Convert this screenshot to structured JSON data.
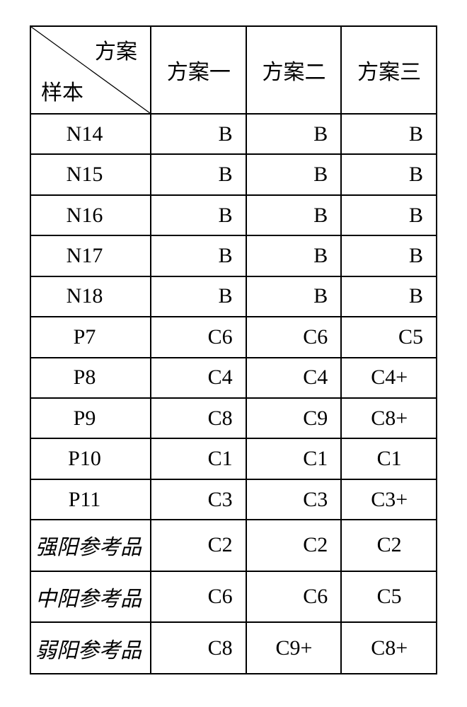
{
  "header": {
    "diag_top": "方案",
    "diag_bottom": "样本",
    "cols": [
      "方案一",
      "方案二",
      "方案三"
    ]
  },
  "rows": [
    {
      "label": "N14",
      "label_style": "id",
      "cells": [
        "B",
        "B",
        "B"
      ],
      "align": [
        "r",
        "r",
        "r"
      ]
    },
    {
      "label": "N15",
      "label_style": "id",
      "cells": [
        "B",
        "B",
        "B"
      ],
      "align": [
        "r",
        "r",
        "r"
      ]
    },
    {
      "label": "N16",
      "label_style": "id",
      "cells": [
        "B",
        "B",
        "B"
      ],
      "align": [
        "r",
        "r",
        "r"
      ]
    },
    {
      "label": "N17",
      "label_style": "id",
      "cells": [
        "B",
        "B",
        "B"
      ],
      "align": [
        "r",
        "r",
        "r"
      ]
    },
    {
      "label": "N18",
      "label_style": "id",
      "cells": [
        "B",
        "B",
        "B"
      ],
      "align": [
        "r",
        "r",
        "r"
      ]
    },
    {
      "label": "P7",
      "label_style": "id",
      "cells": [
        "C6",
        "C6",
        "C5"
      ],
      "align": [
        "r",
        "r",
        "r"
      ]
    },
    {
      "label": "P8",
      "label_style": "id",
      "cells": [
        "C4",
        "C4",
        "C4+"
      ],
      "align": [
        "r",
        "r",
        "c"
      ]
    },
    {
      "label": "P9",
      "label_style": "id",
      "cells": [
        "C8",
        "C9",
        "C8+"
      ],
      "align": [
        "r",
        "r",
        "c"
      ]
    },
    {
      "label": "P10",
      "label_style": "id",
      "cells": [
        "C1",
        "C1",
        "C1"
      ],
      "align": [
        "r",
        "r",
        "c"
      ]
    },
    {
      "label": "P11",
      "label_style": "id",
      "cells": [
        "C3",
        "C3",
        "C3+"
      ],
      "align": [
        "r",
        "r",
        "c"
      ]
    },
    {
      "label": "强阳参考品",
      "label_style": "ref",
      "cells": [
        "C2",
        "C2",
        "C2"
      ],
      "align": [
        "r",
        "r",
        "c"
      ]
    },
    {
      "label": "中阳参考品",
      "label_style": "ref",
      "cells": [
        "C6",
        "C6",
        "C5"
      ],
      "align": [
        "r",
        "r",
        "c"
      ]
    },
    {
      "label": "弱阳参考品",
      "label_style": "ref",
      "cells": [
        "C8",
        "C9+",
        "C8+"
      ],
      "align": [
        "r",
        "c",
        "c"
      ]
    }
  ]
}
